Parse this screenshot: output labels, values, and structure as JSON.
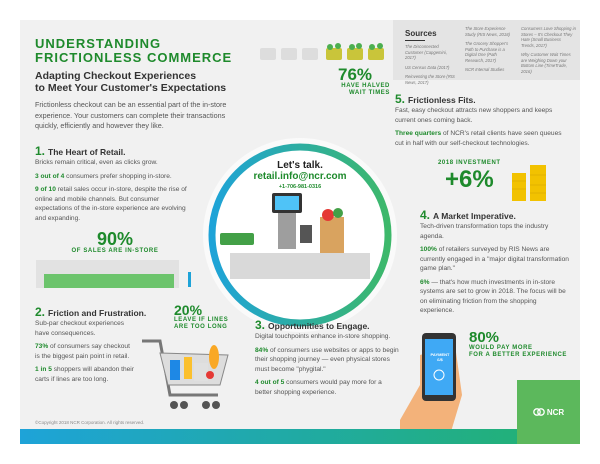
{
  "header": {
    "title_line1": "UNDERSTANDING",
    "title_line2": "FRICTIONLESS COMMERCE",
    "subtitle_line1": "Adapting Checkout Experiences",
    "subtitle_line2": "to Meet Your Customer's Expectations",
    "intro": "Frictionless checkout can be an essential part of the in-store experience. Your customers can complete their transactions quickly, efficiently and however they like."
  },
  "sources": {
    "heading": "Sources",
    "col1": [
      "The Disconnected Customer (Capgemini, 2017)",
      "US Census Data (2017)",
      "Reinventing the Store (RIS News, 2017)"
    ],
    "col2": [
      "The Store Experience Study (RIS News, 2018)",
      "The Grocery Shopper's Path to Purchase is a Digital One (Path Research, 2017)",
      "NCR Internal Studies"
    ],
    "col3": [
      "Consumers Love Shopping in Stores – It's Checkout They Hate (Small Business Trends, 2017)",
      "Why Customer Wait Times are Weighing Down your Bottom Line (TimeTrade, 2016)"
    ]
  },
  "stat_wait": {
    "value": "76%",
    "caption_line1": "HAVE HALVED",
    "caption_line2": "WAIT TIMES"
  },
  "contact": {
    "heading": "Let's talk.",
    "email": "retail.info@ncr.com",
    "phone": "+1-706-981-0316"
  },
  "section1": {
    "number": "1.",
    "title": "The Heart of Retail.",
    "lead": "Bricks remain critical, even as clicks grow.",
    "p1_bold": "3 out of 4",
    "p1_rest": " consumers prefer shopping in-store.",
    "p2_bold": "9 of 10",
    "p2_rest": " retail sales occur in-store, despite the rise of online and mobile channels. But consumer expectations of the in-store experience are evolving and expanding.",
    "stat_value": "90%",
    "stat_caption": "OF SALES ARE IN-STORE"
  },
  "section2": {
    "number": "2.",
    "title": "Friction and Frustration.",
    "lead": "Sub-par checkout experiences have consequences.",
    "p1_bold": "73%",
    "p1_rest": " of consumers say checkout is the biggest pain point in retail.",
    "p2_bold": "1 in 5",
    "p2_rest": " shoppers will abandon their carts if lines are too long.",
    "stat_value": "20%",
    "stat_caption_line1": "LEAVE IF LINES",
    "stat_caption_line2": "ARE TOO LONG"
  },
  "section3": {
    "number": "3.",
    "title": "Opportunities to Engage.",
    "lead": "Digital touchpoints enhance in-store shopping.",
    "p1_bold": "84%",
    "p1_rest": " of consumers use websites or apps to begin their shopping journey — even physical stores must become \"phygital.\"",
    "p2_bold": "4 out of 5",
    "p2_rest": " consumers would pay more for a better shopping experience."
  },
  "section4": {
    "number": "4.",
    "title": "A Market Imperative.",
    "lead": "Tech-driven transformation tops the industry agenda.",
    "p1_bold": "100%",
    "p1_rest": " of retailers surveyed by RIS News are currently engaged in a \"major digital transformation game plan.\"",
    "p2_bold": "6%",
    "p2_rest": " — that's how much investments in in-store systems are set to grow in 2018. The focus will be on eliminating friction from the shopping experience."
  },
  "section5": {
    "number": "5.",
    "title": "Frictionless Fits.",
    "lead": "Fast, easy checkout attracts new shoppers and keeps current ones coming back.",
    "p1_bold": "Three quarters",
    "p1_rest": " of NCR's retail clients have seen queues cut in half with our self-checkout technologies.",
    "stat_caption": "2018 INVESTMENT",
    "stat_value": "+6%"
  },
  "stat_pay": {
    "value": "80%",
    "caption_line1": "WOULD PAY MORE",
    "caption_line2": "FOR A BETTER EXPERIENCE"
  },
  "phone_screen": {
    "line1": "PAYMENT",
    "line2": "£/$"
  },
  "footer": {
    "copyright": "©Copyright 2018 NCR Corporation. All rights reserved.",
    "logo": "NCR"
  },
  "colors": {
    "green": "#1e8a2c",
    "light_green": "#5cb85c",
    "blue": "#1ea3d8",
    "panel": "#f1f1f1",
    "ncr_green": "#5cb85c"
  }
}
